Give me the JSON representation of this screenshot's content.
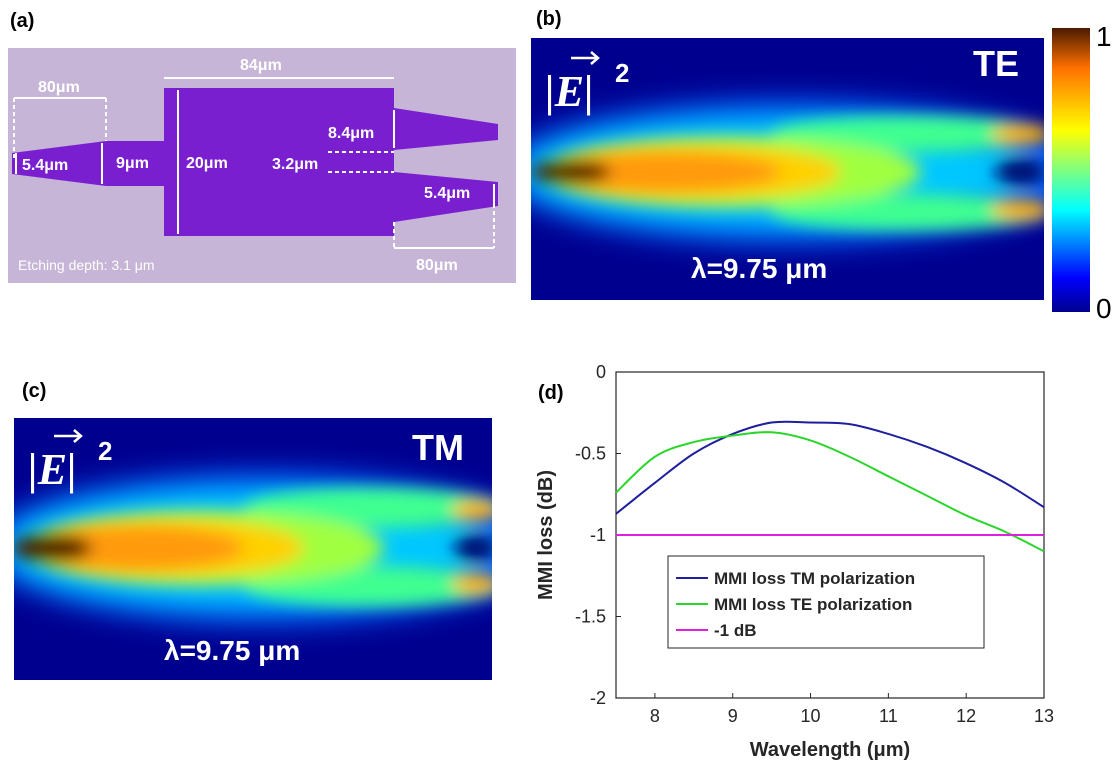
{
  "panels": {
    "a": {
      "label": "(a)",
      "dims": {
        "input_length": "80μm",
        "mmi_length": "84μm",
        "input_width": "5.4μm",
        "taper_width": "9μm",
        "mmi_width": "20μm",
        "output_separation": "8.4μm",
        "gap": "3.2μm",
        "output_width": "5.4μm",
        "output_length": "80μm"
      },
      "etching": "Etching depth: 3.1 μm",
      "colors": {
        "background": "#c6b5d6",
        "device": "#7a1fd0",
        "dim_line": "#ffffff"
      }
    },
    "b": {
      "label": "(b)",
      "field_label": "|E|",
      "exponent": "2",
      "polarization": "TE",
      "wavelength": "λ=9.75 μm",
      "colorbar": {
        "max": "1",
        "min": "0"
      }
    },
    "c": {
      "label": "(c)",
      "field_label": "|E|",
      "exponent": "2",
      "polarization": "TM",
      "wavelength": "λ=9.75 μm"
    },
    "d": {
      "label": "(d)"
    }
  },
  "chart_data": {
    "type": "line",
    "title": "",
    "xlabel": "Wavelength (μm)",
    "ylabel": "MMI loss (dB)",
    "xlim": [
      7.5,
      13
    ],
    "ylim": [
      -2,
      0
    ],
    "xticks": [
      8,
      9,
      10,
      11,
      12,
      13
    ],
    "yticks": [
      0,
      -0.5,
      -1,
      -1.5,
      -2
    ],
    "xtick_labels": [
      "8",
      "9",
      "10",
      "11",
      "12",
      "13"
    ],
    "ytick_labels": [
      "0",
      "-0.5",
      "-1",
      "-1.5",
      "-2"
    ],
    "grid": false,
    "legend_position": "lower-left-center",
    "series": [
      {
        "name": "MMI loss TM polarization",
        "color": "#1f1f9e",
        "x": [
          7.5,
          8.0,
          8.5,
          9.0,
          9.5,
          10.0,
          10.5,
          11.0,
          11.5,
          12.0,
          12.5,
          13.0
        ],
        "y": [
          -0.87,
          -0.68,
          -0.5,
          -0.38,
          -0.31,
          -0.31,
          -0.32,
          -0.38,
          -0.46,
          -0.56,
          -0.68,
          -0.83
        ]
      },
      {
        "name": "MMI loss TE polarization",
        "color": "#2bd62b",
        "x": [
          7.5,
          8.0,
          8.5,
          9.0,
          9.5,
          10.0,
          10.5,
          11.0,
          11.5,
          12.0,
          12.5,
          13.0
        ],
        "y": [
          -0.74,
          -0.52,
          -0.43,
          -0.39,
          -0.37,
          -0.42,
          -0.52,
          -0.64,
          -0.76,
          -0.88,
          -0.98,
          -1.1
        ]
      },
      {
        "name": "-1 dB",
        "color": "#e020e0",
        "x": [
          7.5,
          13.0
        ],
        "y": [
          -1,
          -1
        ]
      }
    ]
  }
}
